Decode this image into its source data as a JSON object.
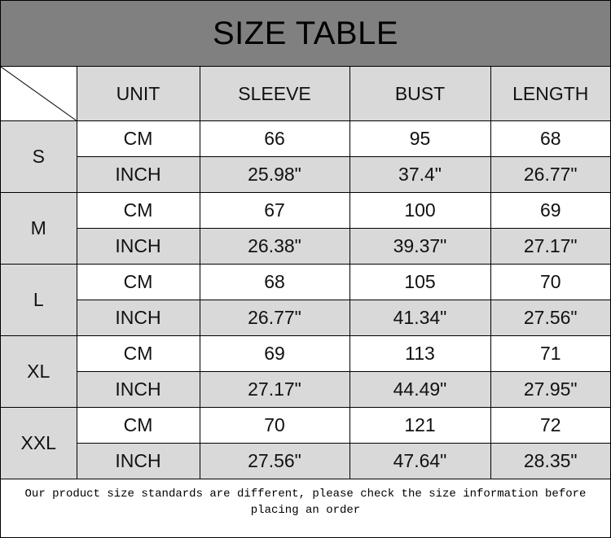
{
  "title": "SIZE TABLE",
  "headers": [
    "UNIT",
    "SLEEVE",
    "BUST",
    "LENGTH"
  ],
  "sizes": [
    {
      "size": "S",
      "rows": [
        [
          "CM",
          "66",
          "95",
          "68"
        ],
        [
          "INCH",
          "25.98\"",
          "37.4\"",
          "26.77\""
        ]
      ]
    },
    {
      "size": "M",
      "rows": [
        [
          "CM",
          "67",
          "100",
          "69"
        ],
        [
          "INCH",
          "26.38\"",
          "39.37\"",
          "27.17\""
        ]
      ]
    },
    {
      "size": "L",
      "rows": [
        [
          "CM",
          "68",
          "105",
          "70"
        ],
        [
          "INCH",
          "26.77\"",
          "41.34\"",
          "27.56\""
        ]
      ]
    },
    {
      "size": "XL",
      "rows": [
        [
          "CM",
          "69",
          "113",
          "71"
        ],
        [
          "INCH",
          "27.17\"",
          "44.49\"",
          "27.95\""
        ]
      ]
    },
    {
      "size": "XXL",
      "rows": [
        [
          "CM",
          "70",
          "121",
          "72"
        ],
        [
          "INCH",
          "27.56\"",
          "47.64\"",
          "28.35\""
        ]
      ]
    }
  ],
  "note": "Our product size standards are different, please check the size information before placing an order"
}
